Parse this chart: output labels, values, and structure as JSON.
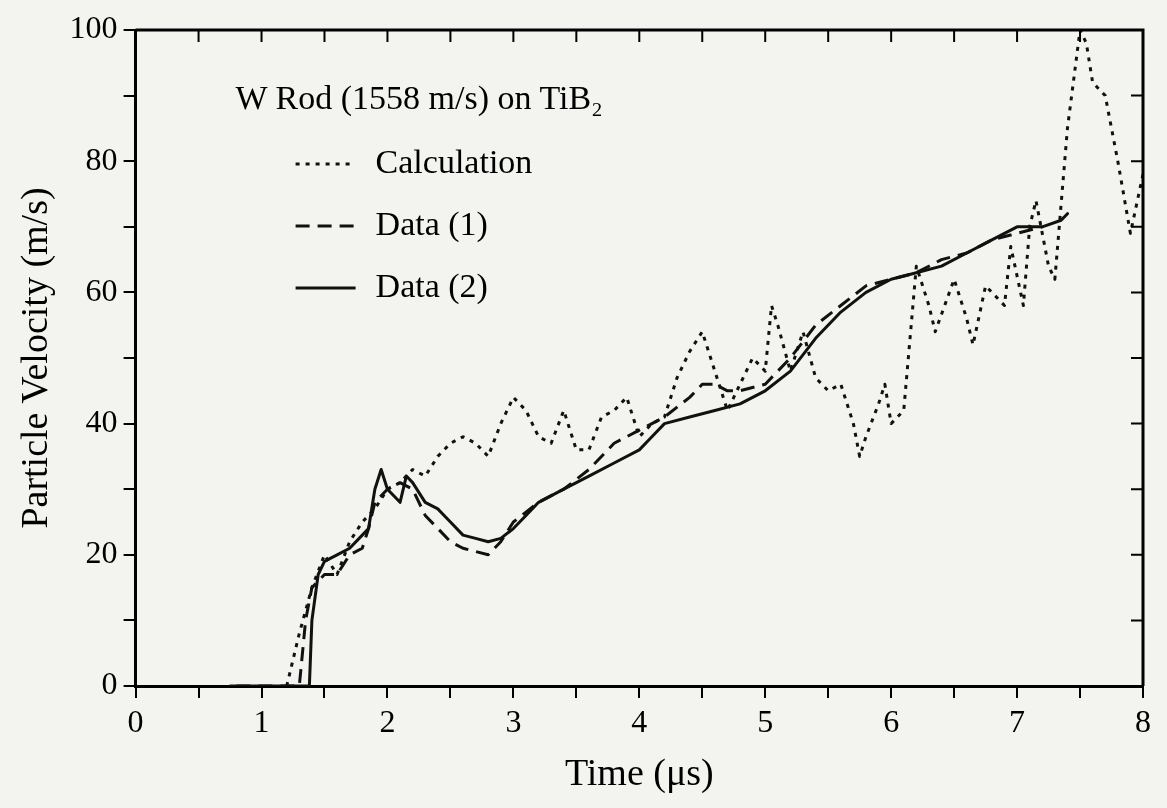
{
  "chart_data": {
    "type": "line",
    "xlabel": "Time (μs)",
    "ylabel": "Particle Velocity (m/s)",
    "legend_title": "W Rod (1558 m/s) on TiB₂",
    "legend": "top left",
    "grid": false,
    "marker": "none",
    "xlim": [
      0,
      8
    ],
    "ylim": [
      0,
      100
    ],
    "xticks": [
      0,
      {
        "value": 0.5,
        "label": null
      },
      1,
      {
        "value": 1.5,
        "label": null
      },
      2,
      {
        "value": 2.5,
        "label": null
      },
      3,
      {
        "value": 3.5,
        "label": null
      },
      4,
      {
        "value": 4.5,
        "label": null
      },
      5,
      {
        "value": 5.5,
        "label": null
      },
      6,
      {
        "value": 6.5,
        "label": null
      },
      7,
      {
        "value": 7.5,
        "label": null
      },
      8
    ],
    "yticks": [
      0,
      {
        "value": 10,
        "label": null
      },
      20,
      {
        "value": 30,
        "label": null
      },
      40,
      {
        "value": 50,
        "label": null
      },
      60,
      {
        "value": 70,
        "label": null
      },
      80,
      {
        "value": 90,
        "label": null
      },
      100
    ],
    "series": [
      {
        "name": "Calculation",
        "color": "#111111",
        "line_style": "dotted",
        "x": [
          1.2,
          1.3,
          1.4,
          1.5,
          1.6,
          1.7,
          1.8,
          1.9,
          2.0,
          2.1,
          2.2,
          2.3,
          2.4,
          2.5,
          2.6,
          2.7,
          2.8,
          2.9,
          3.0,
          3.1,
          3.2,
          3.3,
          3.4,
          3.5,
          3.6,
          3.7,
          3.8,
          3.9,
          4.0,
          4.1,
          4.2,
          4.3,
          4.4,
          4.5,
          4.6,
          4.7,
          4.8,
          4.9,
          5.0,
          5.05,
          5.1,
          5.2,
          5.3,
          5.4,
          5.5,
          5.6,
          5.7,
          5.75,
          5.8,
          5.9,
          5.95,
          6.0,
          6.1,
          6.2,
          6.3,
          6.35,
          6.5,
          6.6,
          6.65,
          6.75,
          6.8,
          6.9,
          6.95,
          7.05,
          7.1,
          7.15,
          7.25,
          7.3,
          7.4,
          7.5,
          7.55,
          7.6,
          7.7,
          7.8,
          7.9,
          8.0
        ],
        "values": [
          0,
          8,
          15,
          20,
          17,
          22,
          25,
          27,
          30,
          31,
          33,
          32,
          35,
          37,
          38,
          37,
          35,
          40,
          44,
          42,
          38,
          37,
          42,
          36,
          36,
          41,
          42,
          44,
          38,
          40,
          41,
          47,
          51,
          54,
          48,
          42,
          46,
          50,
          48,
          58,
          55,
          48,
          54,
          47,
          45,
          46,
          40,
          35,
          38,
          43,
          46,
          40,
          42,
          64,
          58,
          54,
          62,
          56,
          52,
          61,
          60,
          58,
          67,
          58,
          70,
          74,
          64,
          62,
          85,
          100,
          98,
          92,
          90,
          80,
          69,
          78
        ]
      },
      {
        "name": "Data (1)",
        "color": "#111111",
        "line_style": "dashed",
        "x": [
          0.8,
          1.3,
          1.35,
          1.4,
          1.5,
          1.6,
          1.7,
          1.8,
          1.85,
          1.9,
          2.0,
          2.1,
          2.2,
          2.3,
          2.4,
          2.5,
          2.6,
          2.7,
          2.8,
          2.9,
          3.0,
          3.2,
          3.4,
          3.6,
          3.8,
          4.0,
          4.2,
          4.4,
          4.5,
          4.6,
          4.7,
          4.8,
          5.0,
          5.2,
          5.4,
          5.6,
          5.8,
          6.0,
          6.2,
          6.4,
          6.6,
          6.8,
          7.0,
          7.2
        ],
        "values": [
          0,
          0,
          10,
          15,
          17,
          17,
          20,
          21,
          24,
          28,
          30,
          31,
          30,
          26,
          24,
          22,
          21,
          20.5,
          20,
          22,
          25,
          28,
          30,
          33,
          37,
          39,
          41,
          44,
          46,
          46,
          45,
          45,
          46,
          50,
          55,
          58,
          61,
          62,
          63,
          65,
          66,
          68,
          69,
          70
        ]
      },
      {
        "name": "Data (2)",
        "color": "#111111",
        "line_style": "solid",
        "x": [
          0.75,
          1.38,
          1.4,
          1.45,
          1.5,
          1.6,
          1.7,
          1.8,
          1.85,
          1.9,
          1.95,
          2.0,
          2.1,
          2.15,
          2.2,
          2.3,
          2.4,
          2.5,
          2.6,
          2.7,
          2.8,
          2.9,
          3.0,
          3.1,
          3.2,
          3.4,
          3.6,
          3.8,
          4.0,
          4.1,
          4.2,
          4.4,
          4.6,
          4.8,
          5.0,
          5.2,
          5.4,
          5.6,
          5.8,
          6.0,
          6.2,
          6.4,
          6.6,
          6.8,
          7.0,
          7.2,
          7.35,
          7.4
        ],
        "values": [
          0,
          0,
          10,
          17,
          19,
          20,
          21,
          23,
          24,
          30,
          33,
          30,
          28,
          32,
          31,
          28,
          27,
          25,
          23,
          22.5,
          22,
          22.5,
          24,
          26,
          28,
          30,
          32,
          34,
          36,
          38,
          40,
          41,
          42,
          43,
          45,
          48,
          53,
          57,
          60,
          62,
          63,
          64,
          66,
          68,
          70,
          70,
          71,
          72
        ]
      }
    ]
  }
}
